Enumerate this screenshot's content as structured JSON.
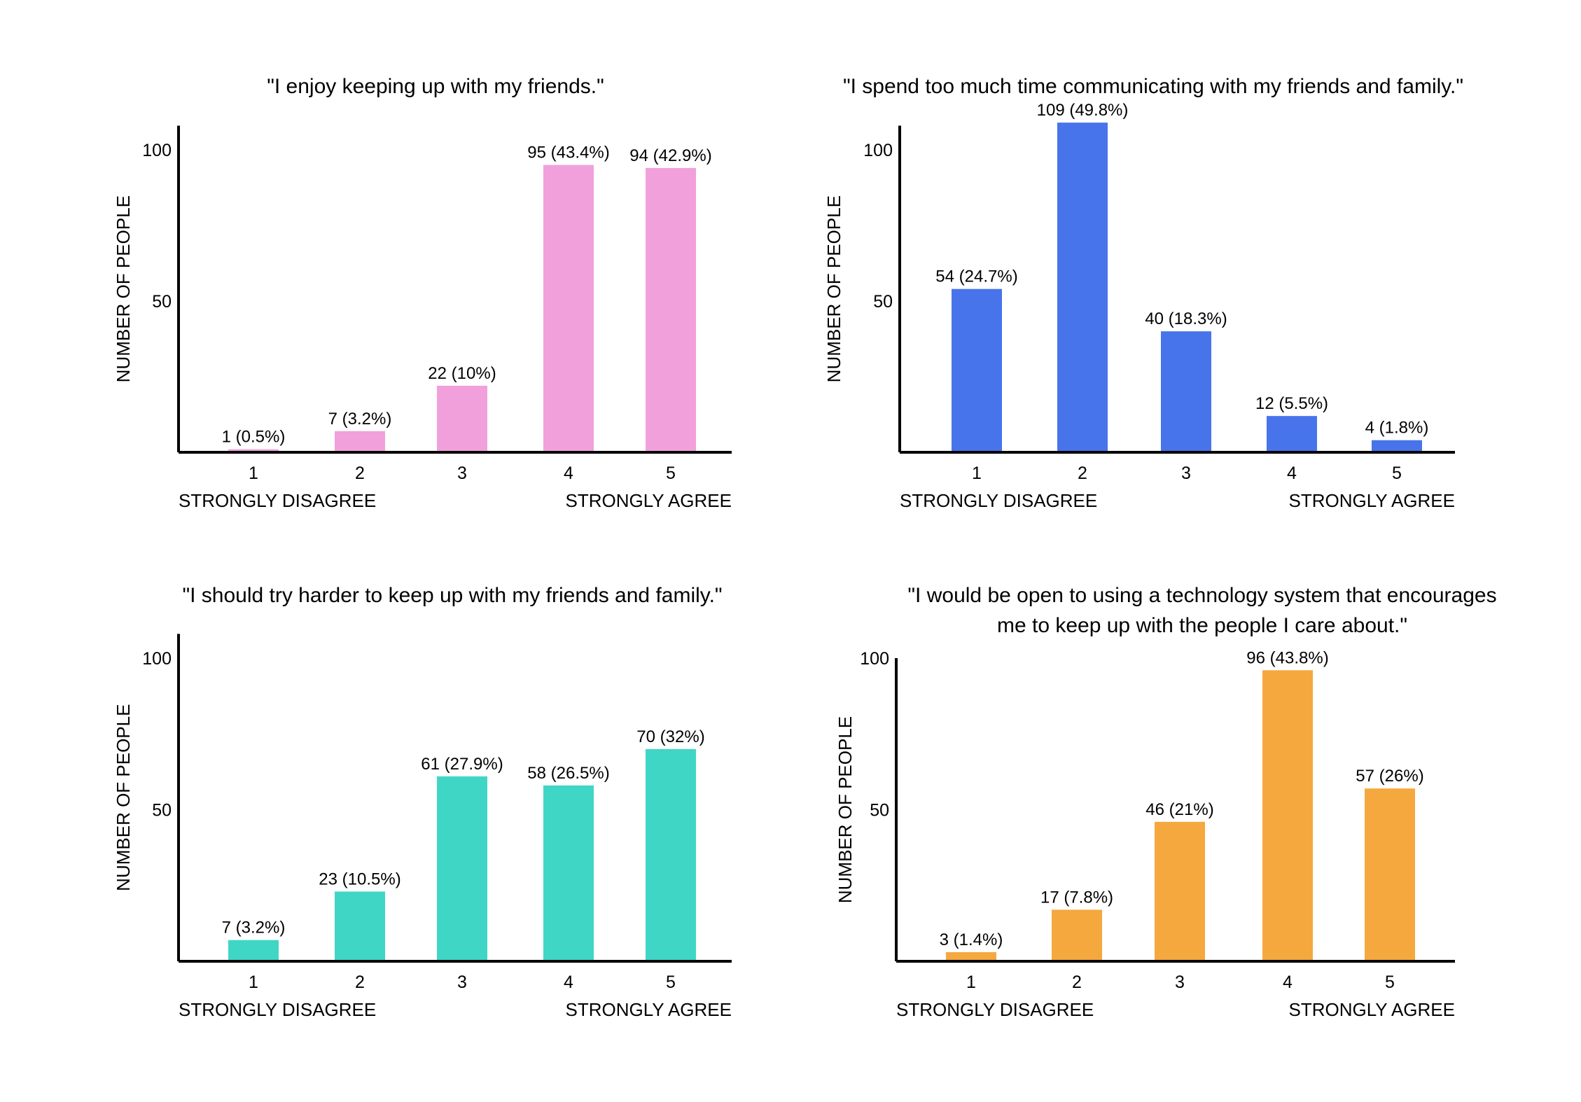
{
  "chart_data": [
    {
      "type": "bar",
      "title": "\"I enjoy keeping up with my friends.\"",
      "title_lines": [
        "\"I enjoy keeping up with my friends.\""
      ],
      "ylabel": "NUMBER OF PEOPLE",
      "categories": [
        "1",
        "2",
        "3",
        "4",
        "5"
      ],
      "values": [
        1,
        7,
        22,
        95,
        94
      ],
      "data_labels": [
        "1 (0.5%)",
        "7 (3.2%)",
        "22 (10%)",
        "95 (43.4%)",
        "94 (42.9%)"
      ],
      "yticks": [
        50,
        100
      ],
      "ylim": [
        0,
        108
      ],
      "low_anchor": "STRONGLY DISAGREE",
      "high_anchor": "STRONGLY AGREE",
      "color": "#F2A0DC",
      "grid": false
    },
    {
      "type": "bar",
      "title": "\"I spend too much time communicating with my friends and family.\"",
      "title_lines": [
        "\"I spend too much time communicating with my friends and family.\""
      ],
      "ylabel": "NUMBER OF PEOPLE",
      "categories": [
        "1",
        "2",
        "3",
        "4",
        "5"
      ],
      "values": [
        54,
        109,
        40,
        12,
        4
      ],
      "data_labels": [
        "54 (24.7%)",
        "109 (49.8%)",
        "40 (18.3%)",
        "12 (5.5%)",
        "4 (1.8%)"
      ],
      "yticks": [
        50,
        100
      ],
      "ylim": [
        0,
        108
      ],
      "low_anchor": "STRONGLY DISAGREE",
      "high_anchor": "STRONGLY AGREE",
      "color": "#4874EB",
      "grid": false
    },
    {
      "type": "bar",
      "title": "\"I should try harder to keep up with my friends and family.\"",
      "title_lines": [
        "\"I should try harder to keep up with my friends and family.\""
      ],
      "ylabel": "NUMBER OF PEOPLE",
      "categories": [
        "1",
        "2",
        "3",
        "4",
        "5"
      ],
      "values": [
        7,
        23,
        61,
        58,
        70
      ],
      "data_labels": [
        "7 (3.2%)",
        "23 (10.5%)",
        "61 (27.9%)",
        "58 (26.5%)",
        "70 (32%)"
      ],
      "yticks": [
        50,
        100
      ],
      "ylim": [
        0,
        108
      ],
      "low_anchor": "STRONGLY DISAGREE",
      "high_anchor": "STRONGLY AGREE",
      "color": "#40D6C6",
      "grid": false
    },
    {
      "type": "bar",
      "title": "\"I would be open to using a technology system that encourages me to keep up with the people I care about.\"",
      "title_lines": [
        "\"I would be open to using a technology system that encourages",
        "me to keep up with the people I care about.\""
      ],
      "ylabel": "NUMBER OF PEOPLE",
      "categories": [
        "1",
        "2",
        "3",
        "4",
        "5"
      ],
      "values": [
        3,
        17,
        46,
        96,
        57
      ],
      "data_labels": [
        "3 (1.4%)",
        "17 (7.8%)",
        "46 (21%)",
        "96 (43.8%)",
        "57 (26%)"
      ],
      "yticks": [
        50,
        100
      ],
      "ylim": [
        0,
        100
      ],
      "low_anchor": "STRONGLY DISAGREE",
      "high_anchor": "STRONGLY AGREE",
      "color": "#F5A83E",
      "grid": false
    }
  ]
}
